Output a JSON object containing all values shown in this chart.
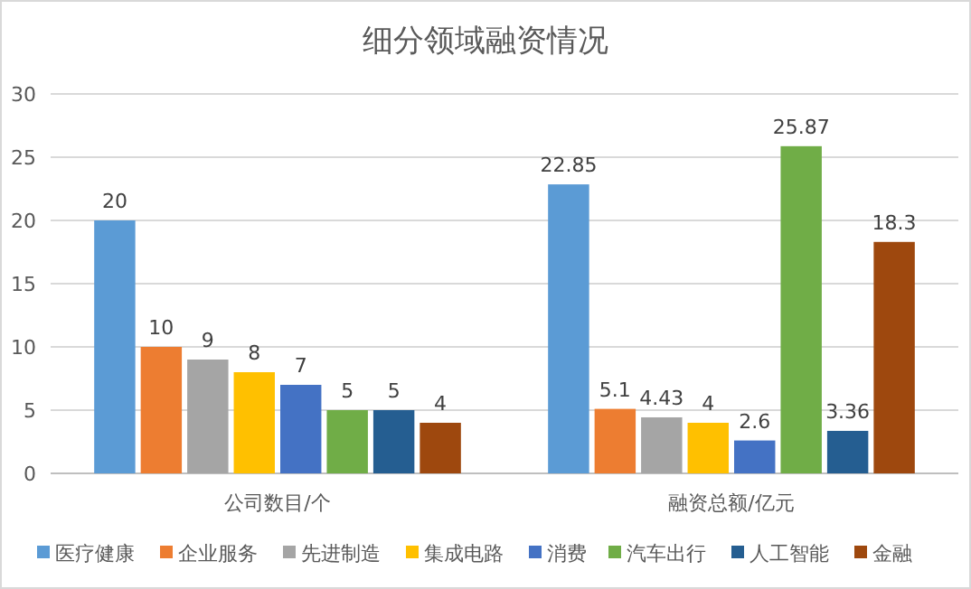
{
  "chart_data": {
    "type": "bar",
    "title": "细分领域融资情况",
    "categories": [
      "公司数目/个",
      "融资总额/亿元"
    ],
    "series": [
      {
        "name": "医疗健康",
        "color": "#5b9bd5",
        "values": [
          20,
          22.85
        ]
      },
      {
        "name": "企业服务",
        "color": "#ed7d31",
        "values": [
          10,
          5.1
        ]
      },
      {
        "name": "先进制造",
        "color": "#a5a5a5",
        "values": [
          9,
          4.43
        ]
      },
      {
        "name": "集成电路",
        "color": "#ffc000",
        "values": [
          8,
          4
        ]
      },
      {
        "name": "消费",
        "color": "#4472c4",
        "values": [
          7,
          2.6
        ]
      },
      {
        "name": "汽车出行",
        "color": "#70ad47",
        "values": [
          5,
          25.87
        ]
      },
      {
        "name": "人工智能",
        "color": "#255e91",
        "values": [
          5,
          3.36
        ]
      },
      {
        "name": "金融",
        "color": "#9e480e",
        "values": [
          4,
          18.3
        ]
      }
    ],
    "ylim": [
      0,
      30
    ],
    "yticks": [
      0,
      5,
      10,
      15,
      20,
      25,
      30
    ],
    "grid": "y",
    "legend": "bottom",
    "data_labels": true
  }
}
